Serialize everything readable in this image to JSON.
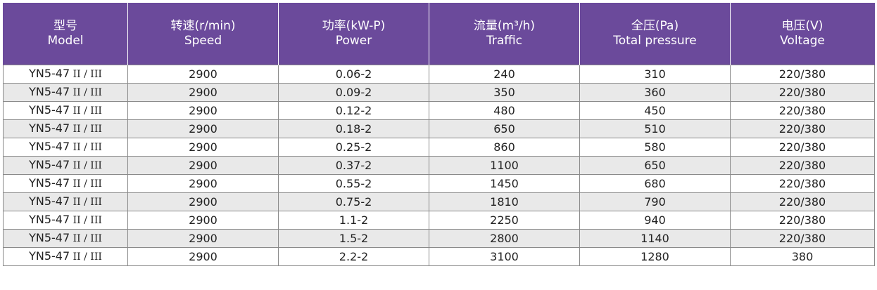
{
  "table": {
    "headers": [
      {
        "zh": "型号",
        "en": "Model"
      },
      {
        "zh": "转速(r/min)",
        "en": "Speed"
      },
      {
        "zh": "功率(kW-P)",
        "en": "Power"
      },
      {
        "zh": "流量(m³/h)",
        "en": "Traffic"
      },
      {
        "zh": "全压(Pa)",
        "en": "Total pressure"
      },
      {
        "zh": "电压(V)",
        "en": "Voltage"
      }
    ],
    "rows": [
      {
        "model_prefix": "YN5-47",
        "model_suffix": " II / III",
        "speed": "2900",
        "power": "0.06-2",
        "traffic": "240",
        "pressure": "310",
        "voltage": "220/380"
      },
      {
        "model_prefix": "YN5-47",
        "model_suffix": " II / III",
        "speed": "2900",
        "power": "0.09-2",
        "traffic": "350",
        "pressure": "360",
        "voltage": "220/380"
      },
      {
        "model_prefix": "YN5-47",
        "model_suffix": " II / III",
        "speed": "2900",
        "power": "0.12-2",
        "traffic": "480",
        "pressure": "450",
        "voltage": "220/380"
      },
      {
        "model_prefix": "YN5-47",
        "model_suffix": " II / III",
        "speed": "2900",
        "power": "0.18-2",
        "traffic": "650",
        "pressure": "510",
        "voltage": "220/380"
      },
      {
        "model_prefix": "YN5-47",
        "model_suffix": " II / III",
        "speed": "2900",
        "power": "0.25-2",
        "traffic": "860",
        "pressure": "580",
        "voltage": "220/380"
      },
      {
        "model_prefix": "YN5-47",
        "model_suffix": " II / III",
        "speed": "2900",
        "power": "0.37-2",
        "traffic": "1100",
        "pressure": "650",
        "voltage": "220/380"
      },
      {
        "model_prefix": "YN5-47",
        "model_suffix": " II / III",
        "speed": "2900",
        "power": "0.55-2",
        "traffic": "1450",
        "pressure": "680",
        "voltage": "220/380"
      },
      {
        "model_prefix": "YN5-47",
        "model_suffix": " II / III",
        "speed": "2900",
        "power": "0.75-2",
        "traffic": "1810",
        "pressure": "790",
        "voltage": "220/380"
      },
      {
        "model_prefix": "YN5-47",
        "model_suffix": " II / III",
        "speed": "2900",
        "power": "1.1-2",
        "traffic": "2250",
        "pressure": "940",
        "voltage": "220/380"
      },
      {
        "model_prefix": "YN5-47",
        "model_suffix": " II / III",
        "speed": "2900",
        "power": "1.5-2",
        "traffic": "2800",
        "pressure": "1140",
        "voltage": "220/380"
      },
      {
        "model_prefix": "YN5-47",
        "model_suffix": " II / III",
        "speed": "2900",
        "power": "2.2-2",
        "traffic": "3100",
        "pressure": "1280",
        "voltage": "380"
      }
    ]
  },
  "colors": {
    "header_bg": "#6b4a9b",
    "stripe_bg": "#e9e9e9",
    "border": "#8a8a8a"
  }
}
